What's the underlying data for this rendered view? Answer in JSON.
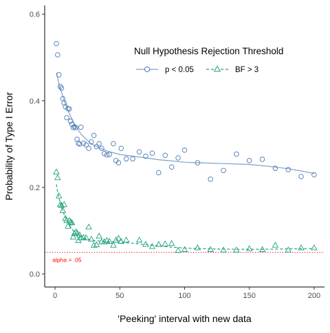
{
  "chart_data": {
    "type": "scatter",
    "xlabel": "'Peeking' interval with new data",
    "ylabel": "Probability of Type I Error",
    "xlim": [
      -8,
      208
    ],
    "ylim": [
      -0.03,
      0.62
    ],
    "x_ticks": [
      0,
      50,
      100,
      150,
      200
    ],
    "y_ticks": [
      0.0,
      0.2,
      0.4,
      0.6
    ],
    "x_tick_labels": [
      "0",
      "50",
      "100",
      "150",
      "200"
    ],
    "y_tick_labels": [
      "0.0",
      "0.2",
      "0.4",
      "0.6"
    ],
    "grid": false,
    "legend": {
      "title": "Null Hypothesis Rejection Threshold",
      "placement": "top-right",
      "entries": [
        "p < 0.05",
        "BF > 3"
      ]
    },
    "reference_line": {
      "y": 0.05,
      "label": "alpha = .05",
      "color": "#ff0000",
      "style": "dotted"
    },
    "series": [
      {
        "name": "p < 0.05",
        "marker": "circle",
        "line": "solid",
        "color": "#4a79b5",
        "line_color": "#7ea0cc",
        "points": [
          [
            1,
            0.532
          ],
          [
            2,
            0.506
          ],
          [
            3,
            0.46
          ],
          [
            4,
            0.433
          ],
          [
            5,
            0.429
          ],
          [
            6,
            0.405
          ],
          [
            7,
            0.395
          ],
          [
            8,
            0.386
          ],
          [
            9,
            0.361
          ],
          [
            10,
            0.382
          ],
          [
            11,
            0.381
          ],
          [
            12,
            0.353
          ],
          [
            13,
            0.346
          ],
          [
            14,
            0.338
          ],
          [
            15,
            0.34
          ],
          [
            16,
            0.338
          ],
          [
            17,
            0.311
          ],
          [
            18,
            0.302
          ],
          [
            19,
            0.3
          ],
          [
            20,
            0.339
          ],
          [
            22,
            0.302
          ],
          [
            24,
            0.298
          ],
          [
            26,
            0.29
          ],
          [
            28,
            0.305
          ],
          [
            30,
            0.32
          ],
          [
            32,
            0.294
          ],
          [
            34,
            0.301
          ],
          [
            36,
            0.29
          ],
          [
            38,
            0.278
          ],
          [
            40,
            0.275
          ],
          [
            42,
            0.276
          ],
          [
            45,
            0.301
          ],
          [
            47,
            0.262
          ],
          [
            49,
            0.257
          ],
          [
            51,
            0.29
          ],
          [
            55,
            0.266
          ],
          [
            60,
            0.266
          ],
          [
            65,
            0.282
          ],
          [
            70,
            0.272
          ],
          [
            75,
            0.279
          ],
          [
            80,
            0.234
          ],
          [
            85,
            0.274
          ],
          [
            90,
            0.247
          ],
          [
            95,
            0.268
          ],
          [
            100,
            0.286
          ],
          [
            110,
            0.257
          ],
          [
            120,
            0.219
          ],
          [
            130,
            0.239
          ],
          [
            140,
            0.277
          ],
          [
            150,
            0.262
          ],
          [
            160,
            0.265
          ],
          [
            170,
            0.244
          ],
          [
            180,
            0.241
          ],
          [
            190,
            0.225
          ],
          [
            200,
            0.229
          ]
        ],
        "trend": [
          [
            1,
            0.465
          ],
          [
            3,
            0.44
          ],
          [
            5,
            0.42
          ],
          [
            8,
            0.392
          ],
          [
            10,
            0.377
          ],
          [
            12,
            0.364
          ],
          [
            15,
            0.346
          ],
          [
            20,
            0.323
          ],
          [
            25,
            0.308
          ],
          [
            30,
            0.297
          ],
          [
            40,
            0.284
          ],
          [
            50,
            0.276
          ],
          [
            60,
            0.272
          ],
          [
            70,
            0.268
          ],
          [
            80,
            0.264
          ],
          [
            90,
            0.261
          ],
          [
            100,
            0.258
          ],
          [
            110,
            0.257
          ],
          [
            120,
            0.256
          ],
          [
            130,
            0.255
          ],
          [
            140,
            0.254
          ],
          [
            150,
            0.253
          ],
          [
            160,
            0.25
          ],
          [
            170,
            0.247
          ],
          [
            180,
            0.243
          ],
          [
            190,
            0.238
          ],
          [
            200,
            0.232
          ]
        ]
      },
      {
        "name": "BF > 3",
        "marker": "triangle",
        "line": "dashed",
        "color": "#1fa07a",
        "line_color": "#1fa07a",
        "points": [
          [
            1,
            0.235
          ],
          [
            2,
            0.222
          ],
          [
            3,
            0.18
          ],
          [
            4,
            0.16
          ],
          [
            5,
            0.158
          ],
          [
            6,
            0.146
          ],
          [
            7,
            0.16
          ],
          [
            8,
            0.128
          ],
          [
            9,
            0.123
          ],
          [
            10,
            0.11
          ],
          [
            11,
            0.123
          ],
          [
            12,
            0.12
          ],
          [
            13,
            0.118
          ],
          [
            14,
            0.085
          ],
          [
            15,
            0.093
          ],
          [
            16,
            0.097
          ],
          [
            17,
            0.094
          ],
          [
            18,
            0.077
          ],
          [
            19,
            0.09
          ],
          [
            20,
            0.083
          ],
          [
            22,
            0.084
          ],
          [
            24,
            0.083
          ],
          [
            26,
            0.108
          ],
          [
            28,
            0.08
          ],
          [
            30,
            0.066
          ],
          [
            32,
            0.067
          ],
          [
            34,
            0.087
          ],
          [
            36,
            0.074
          ],
          [
            38,
            0.074
          ],
          [
            40,
            0.077
          ],
          [
            42,
            0.075
          ],
          [
            45,
            0.066
          ],
          [
            47,
            0.078
          ],
          [
            49,
            0.082
          ],
          [
            51,
            0.075
          ],
          [
            55,
            0.078
          ],
          [
            65,
            0.078
          ],
          [
            70,
            0.068
          ],
          [
            75,
            0.063
          ],
          [
            80,
            0.068
          ],
          [
            85,
            0.069
          ],
          [
            90,
            0.07
          ],
          [
            95,
            0.054
          ],
          [
            100,
            0.056
          ],
          [
            110,
            0.06
          ],
          [
            120,
            0.056
          ],
          [
            130,
            0.055
          ],
          [
            140,
            0.055
          ],
          [
            150,
            0.058
          ],
          [
            160,
            0.056
          ],
          [
            170,
            0.066
          ],
          [
            180,
            0.055
          ],
          [
            190,
            0.06
          ],
          [
            200,
            0.06
          ]
        ],
        "trend": [
          [
            1,
            0.207
          ],
          [
            2,
            0.19
          ],
          [
            3,
            0.176
          ],
          [
            4,
            0.164
          ],
          [
            5,
            0.154
          ],
          [
            6,
            0.145
          ],
          [
            8,
            0.131
          ],
          [
            10,
            0.119
          ],
          [
            12,
            0.109
          ],
          [
            14,
            0.1
          ],
          [
            16,
            0.094
          ],
          [
            18,
            0.089
          ],
          [
            20,
            0.085
          ],
          [
            25,
            0.08
          ],
          [
            30,
            0.077
          ],
          [
            40,
            0.075
          ],
          [
            50,
            0.073
          ],
          [
            60,
            0.071
          ],
          [
            70,
            0.068
          ],
          [
            80,
            0.065
          ],
          [
            90,
            0.062
          ],
          [
            100,
            0.06
          ],
          [
            120,
            0.058
          ],
          [
            140,
            0.057
          ],
          [
            160,
            0.057
          ],
          [
            180,
            0.058
          ],
          [
            200,
            0.059
          ]
        ]
      }
    ]
  }
}
